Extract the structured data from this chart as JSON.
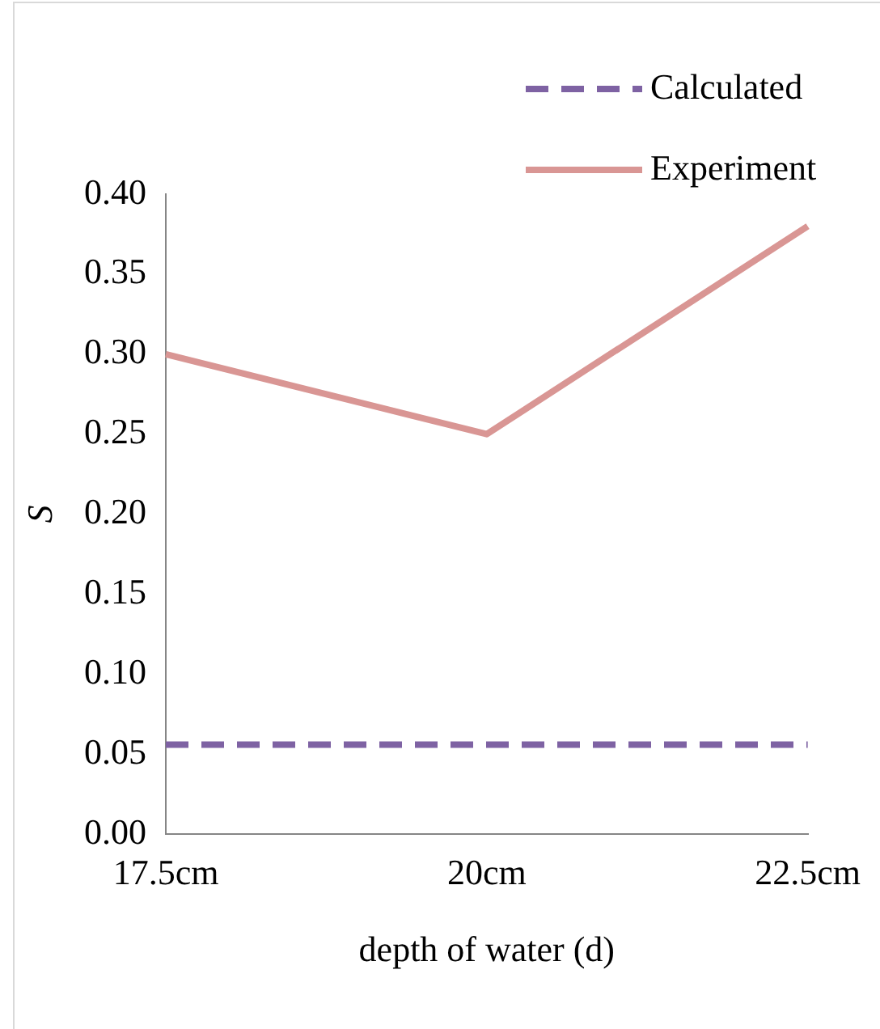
{
  "chart_data": {
    "type": "line",
    "xlabel": "depth of water (d)",
    "ylabel": "S",
    "categories": [
      "17.5cm",
      "20cm",
      "22.5cm"
    ],
    "series": [
      {
        "name": "Calculated",
        "color": "#7e62a3",
        "values": [
          0.056,
          0.056,
          0.056
        ],
        "line_style": "dashed"
      },
      {
        "name": "Experiment",
        "color": "#d99694",
        "values": [
          0.3,
          0.25,
          0.38
        ],
        "line_style": "solid"
      }
    ],
    "ylim": [
      0,
      0.4
    ],
    "yticks": [
      {
        "value": 0,
        "label": "0.00"
      },
      {
        "value": 0.05,
        "label": "0.05"
      },
      {
        "value": 0.1,
        "label": "0.10"
      },
      {
        "value": 0.15,
        "label": "0.15"
      },
      {
        "value": 0.2,
        "label": "0.20"
      },
      {
        "value": 0.25,
        "label": "0.25"
      },
      {
        "value": 0.3,
        "label": "0.30"
      },
      {
        "value": 0.35,
        "label": "0.35"
      },
      {
        "value": 0.4,
        "label": "0.40"
      }
    ],
    "grid": false,
    "legend": "top right",
    "marker": "none"
  }
}
